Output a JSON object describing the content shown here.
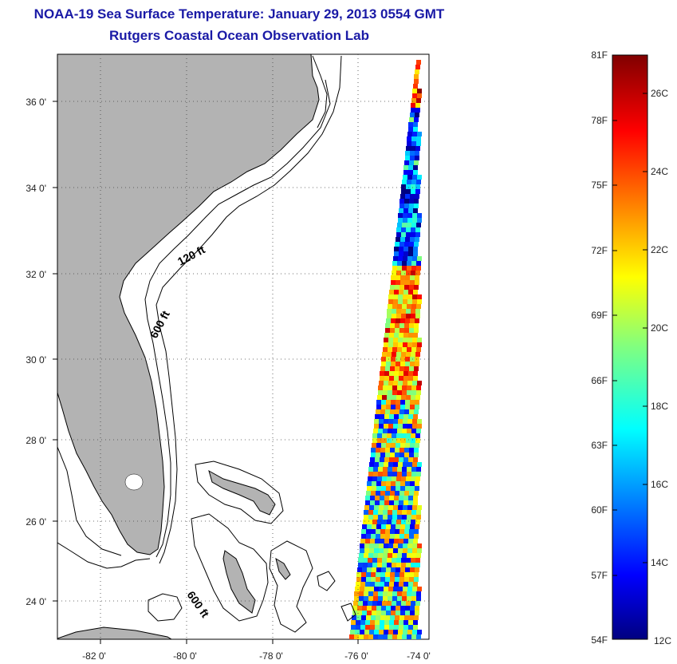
{
  "title": "NOAA-19 Sea Surface Temperature:  January 29, 2013 0554 GMT",
  "subtitle": "Rutgers Coastal Ocean Observation Lab",
  "map": {
    "lat_labels": [
      "36 0'",
      "34 0'",
      "32 0'",
      "30 0'",
      "28 0'",
      "26 0'",
      "24 0'"
    ],
    "lon_labels": [
      "-82 0'",
      "-80 0'",
      "-78 0'",
      "-76 0'",
      "-74 0'"
    ],
    "contour_labels": [
      "120 ft",
      "600 ft",
      "600 ft"
    ],
    "colors": {
      "land": "#b3b3b3",
      "ocean": "#ffffff",
      "contour": "#000000"
    }
  },
  "colorbar": {
    "f_labels": [
      "81F",
      "78F",
      "75F",
      "72F",
      "69F",
      "66F",
      "63F",
      "60F",
      "57F",
      "54F"
    ],
    "c_labels": [
      "26C",
      "24C",
      "22C",
      "20C",
      "18C",
      "16C",
      "14C",
      "12C"
    ],
    "colormap": "jet",
    "range_c": [
      12,
      27
    ]
  },
  "chart_data": {
    "type": "heatmap",
    "title": "NOAA-19 Sea Surface Temperature:  January 29, 2013 0554 GMT",
    "subtitle": "Rutgers Coastal Ocean Observation Lab",
    "xlabel": "",
    "ylabel": "",
    "xlim": [
      -83,
      -73
    ],
    "ylim": [
      23,
      37
    ],
    "units": "C",
    "colorbar_range": [
      12,
      27
    ],
    "swath_note": "satellite swath visible only along eastern edge, roughly -75 to -73 longitude"
  }
}
